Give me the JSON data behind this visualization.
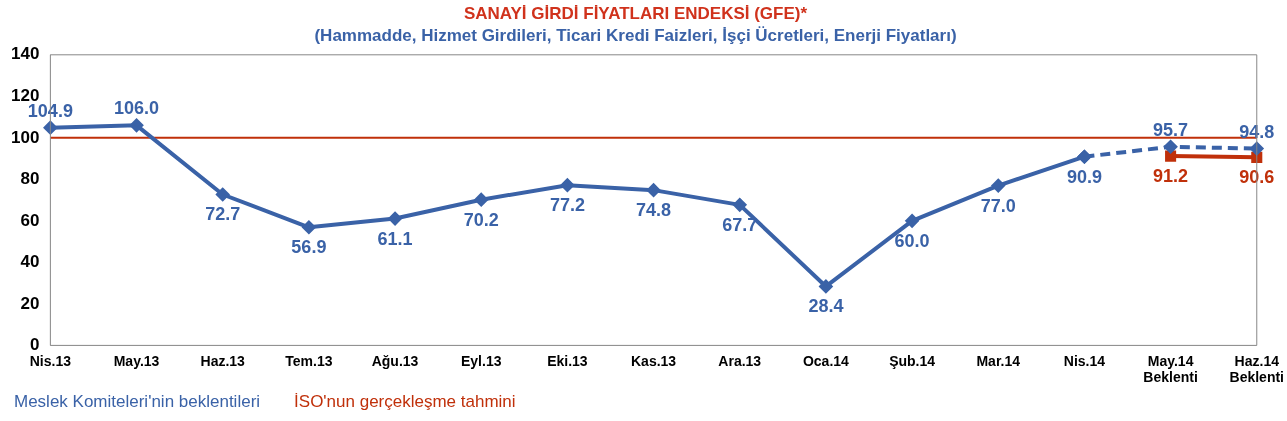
{
  "chart_data": {
    "type": "line",
    "title": "SANAYİ GİRDİ FİYATLARI ENDEKSİ (GFE)*",
    "subtitle": "(Hammadde, Hizmet Girdileri, Ticari Kredi Faizleri, İşçi Ücretleri, Enerji Fiyatları)",
    "categories": [
      "Nis.13",
      "May.13",
      "Haz.13",
      "Tem.13",
      "Ağu.13",
      "Eyl.13",
      "Eki.13",
      "Kas.13",
      "Ara.13",
      "Oca.14",
      "Şub.14",
      "Mar.14",
      "Nis.14",
      "May.14\nBeklenti",
      "Haz.14\nBeklenti"
    ],
    "series": [
      {
        "name": "Meslek Komiteleri'nin beklentileri",
        "color": "#3a62a7",
        "marker": "diamond",
        "line_style": "solid",
        "values": [
          104.9,
          106.0,
          72.7,
          56.9,
          61.1,
          70.2,
          77.2,
          74.8,
          67.7,
          28.4,
          60.0,
          77.0,
          90.9,
          null,
          null
        ],
        "value_labels": [
          "104.9",
          "106.0",
          "72.7",
          "56.9",
          "61.1",
          "70.2",
          "77.2",
          "74.8",
          "67.7",
          "28.4",
          "60.0",
          "77.0",
          "90.9",
          null,
          null
        ]
      },
      {
        "color": "#3a62a7",
        "marker": "diamond",
        "line_style": "dashed",
        "values": [
          null,
          null,
          null,
          null,
          null,
          null,
          null,
          null,
          null,
          null,
          null,
          null,
          90.9,
          95.7,
          94.8
        ],
        "value_labels": [
          null,
          null,
          null,
          null,
          null,
          null,
          null,
          null,
          null,
          null,
          null,
          null,
          null,
          "95.7",
          "94.8"
        ]
      },
      {
        "name": "İSO'nun gerçekleşme tahmini",
        "color": "#c0300a",
        "marker": "square",
        "line_style": "solid",
        "values": [
          null,
          null,
          null,
          null,
          null,
          null,
          null,
          null,
          null,
          null,
          null,
          null,
          null,
          91.2,
          90.6
        ],
        "value_labels": [
          null,
          null,
          null,
          null,
          null,
          null,
          null,
          null,
          null,
          null,
          null,
          null,
          null,
          "91.2",
          "90.6"
        ]
      }
    ],
    "ylim": [
      0,
      140
    ],
    "yticks": [
      0,
      20,
      40,
      60,
      80,
      100,
      120,
      140
    ],
    "grid": false,
    "ref_lines": [
      {
        "axis": "y",
        "value": 100,
        "color": "#c0300a"
      }
    ],
    "legend": "bottom left"
  }
}
